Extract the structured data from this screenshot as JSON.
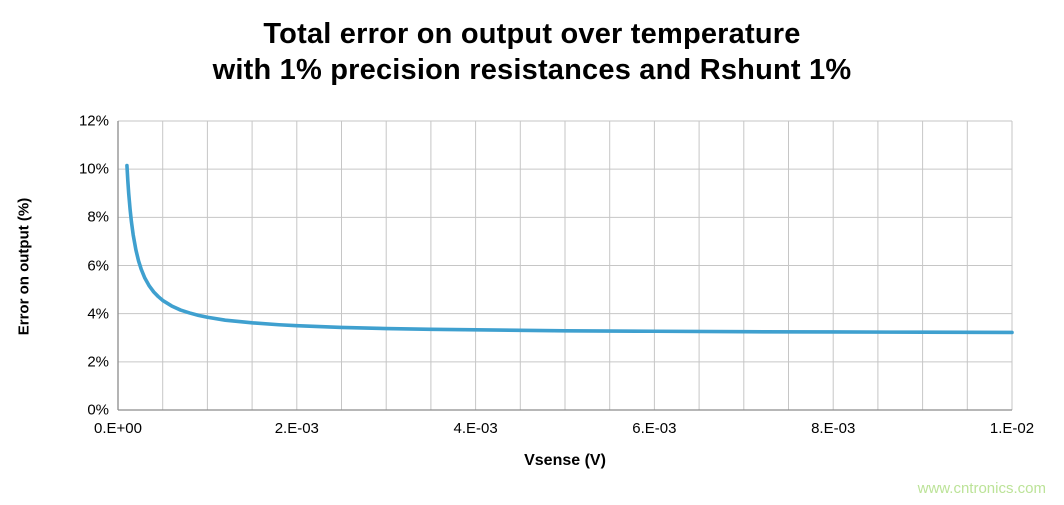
{
  "chart_data": {
    "type": "line",
    "title_line1": "Total error on output over temperature",
    "title_line2": "with 1% precision resistances and Rshunt 1%",
    "xlabel": "Vsense (V)",
    "ylabel": "Error on output (%)",
    "xlim": [
      0,
      0.01
    ],
    "ylim": [
      0,
      12
    ],
    "grid": true,
    "legend": "none",
    "x_minor_step": 0.0005,
    "y_ticks": {
      "values": [
        0,
        2,
        4,
        6,
        8,
        10,
        12
      ],
      "labels": [
        "0%",
        "2%",
        "4%",
        "6%",
        "8%",
        "10%",
        "12%"
      ]
    },
    "x_ticks": {
      "values": [
        0,
        0.002,
        0.004,
        0.006,
        0.008,
        0.01
      ],
      "labels": [
        "0.E+00",
        "2.E-03",
        "4.E-03",
        "6.E-03",
        "8.E-03",
        "1.E-02"
      ]
    },
    "series": [
      {
        "name": "Total error on output",
        "color": "#3fa0cf",
        "x": [
          0.0001,
          0.00011,
          0.00012,
          0.000135,
          0.00015,
          0.00017,
          0.0002,
          0.00023,
          0.00026,
          0.0003,
          0.00035,
          0.0004,
          0.00045,
          0.0005,
          0.0006,
          0.0007,
          0.0008,
          0.0009,
          0.001,
          0.0012,
          0.0015,
          0.0018,
          0.002,
          0.0025,
          0.003,
          0.0035,
          0.004,
          0.005,
          0.006,
          0.007,
          0.008,
          0.009,
          0.01
        ],
        "y": [
          10.15,
          9.51,
          8.98,
          8.34,
          7.82,
          7.27,
          6.65,
          6.19,
          5.84,
          5.48,
          5.15,
          4.9,
          4.71,
          4.55,
          4.32,
          4.15,
          4.03,
          3.93,
          3.85,
          3.73,
          3.62,
          3.54,
          3.5,
          3.43,
          3.38,
          3.35,
          3.33,
          3.29,
          3.27,
          3.25,
          3.24,
          3.23,
          3.22
        ]
      }
    ],
    "colors": {
      "gridline": "#c6c6c6",
      "axis": "#8c8c8c",
      "background": "#ffffff"
    },
    "watermark": "www.cntronics.com"
  }
}
